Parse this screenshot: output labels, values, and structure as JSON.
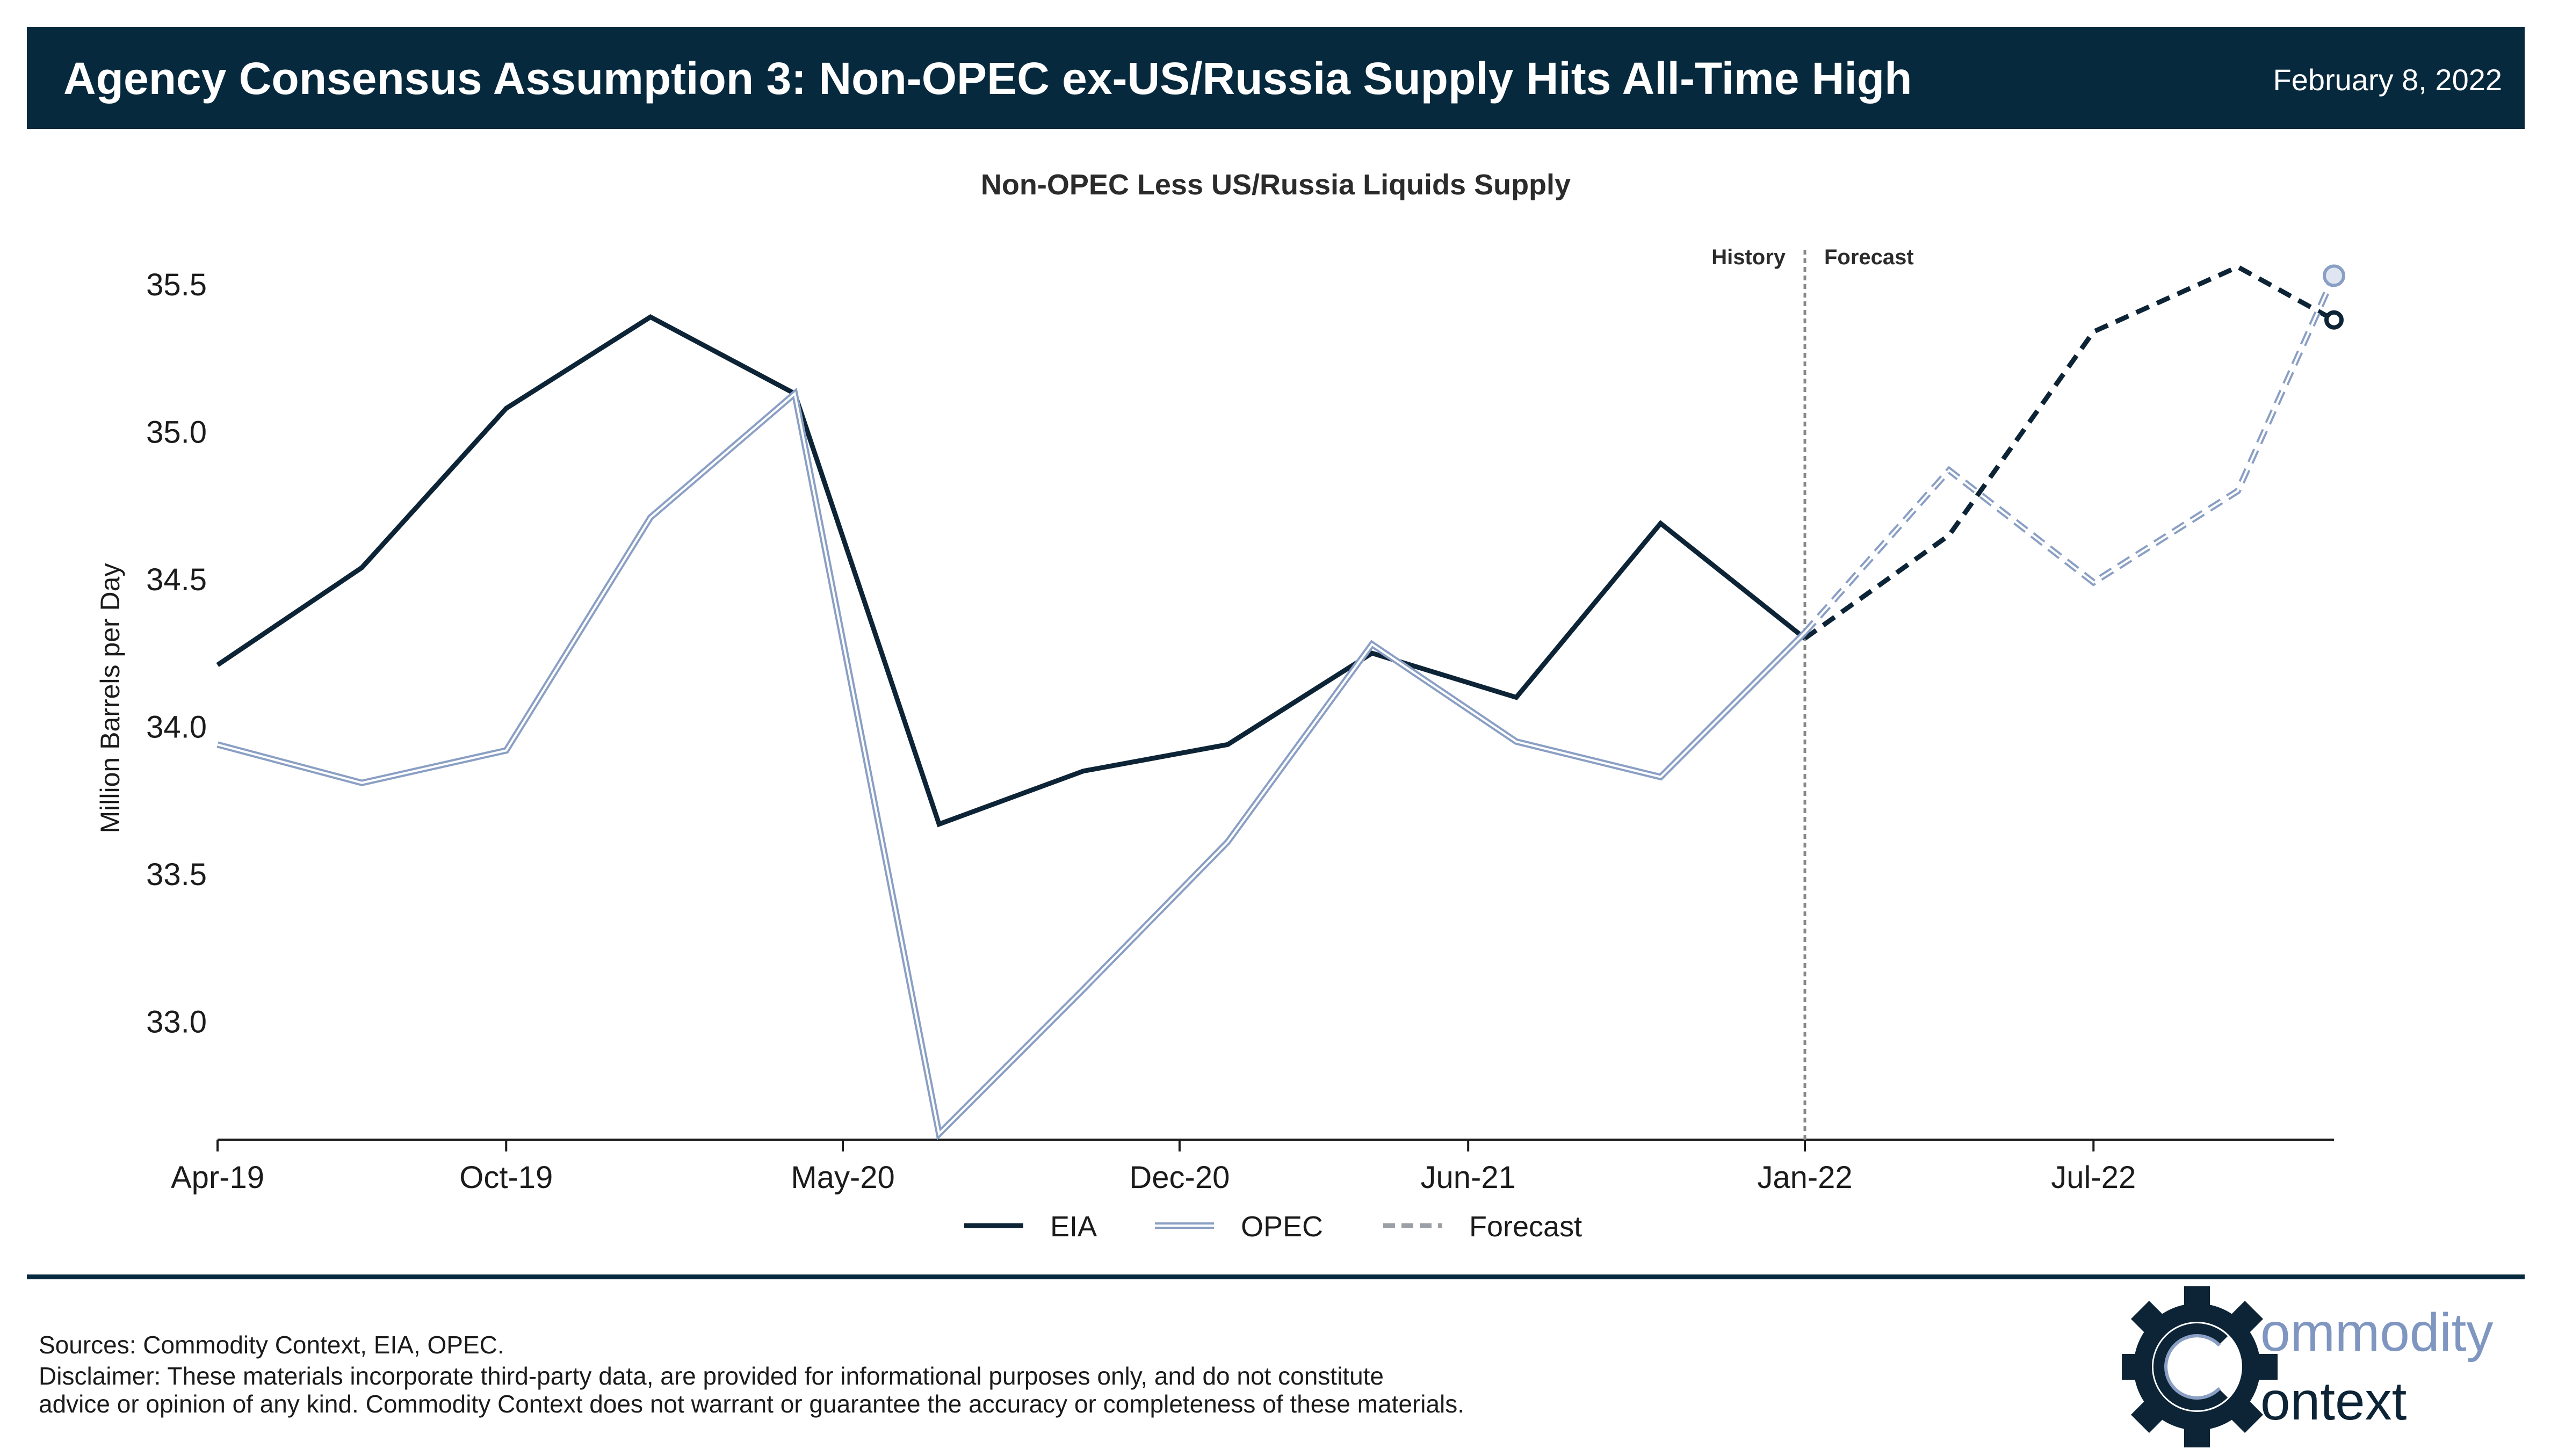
{
  "header": {
    "title": "Agency Consensus Assumption 3: Non-OPEC ex-US/Russia Supply Hits All-Time High",
    "date": "February 8, 2022"
  },
  "colors": {
    "header_bg": "#07293d",
    "eia": "#0d2436",
    "opec": "#8a9fc4",
    "forecast_line": "#9aa0a6",
    "divider": "#07293d"
  },
  "chart_data": {
    "type": "line",
    "title": "Non-OPEC Less US/Russia Liquids Supply",
    "ylabel": "Million Barrels per Day",
    "xlabel": "",
    "ylim": [
      32.6,
      35.7
    ],
    "yticks": [
      33.0,
      33.5,
      34.0,
      34.5,
      35.0,
      35.5
    ],
    "ytick_labels": [
      "33.0",
      "33.5",
      "34.0",
      "34.5",
      "35.0",
      "35.5"
    ],
    "xticks": [
      "2019-04",
      "2019-10",
      "2020-05",
      "2020-12",
      "2021-06",
      "2022-01",
      "2022-07"
    ],
    "xtick_labels": [
      "Apr-19",
      "Oct-19",
      "May-20",
      "Dec-20",
      "Jun-21",
      "Jan-22",
      "Jul-22"
    ],
    "x_range": [
      "2019-04",
      "2022-12"
    ],
    "divider_x": "2022-01",
    "divider_labels": {
      "left": "History",
      "right": "Forecast"
    },
    "grid": false,
    "legend": {
      "placement": "bottom-center",
      "entries": [
        "EIA",
        "OPEC",
        "Forecast"
      ]
    },
    "series": [
      {
        "name": "EIA",
        "history": {
          "x": [
            "2019-04",
            "2019-07",
            "2019-10",
            "2020-01",
            "2020-04",
            "2020-07",
            "2020-10",
            "2021-01",
            "2021-04",
            "2021-07",
            "2021-10",
            "2022-01"
          ],
          "y": [
            34.21,
            34.54,
            35.08,
            35.39,
            35.13,
            33.67,
            33.85,
            33.94,
            34.25,
            34.1,
            34.69,
            34.3
          ]
        },
        "forecast": {
          "x": [
            "2022-01",
            "2022-04",
            "2022-07",
            "2022-10",
            "2022-12"
          ],
          "y": [
            34.3,
            34.65,
            35.34,
            35.56,
            35.38
          ]
        }
      },
      {
        "name": "OPEC",
        "history": {
          "x": [
            "2019-04",
            "2019-07",
            "2019-10",
            "2020-01",
            "2020-04",
            "2020-07",
            "2020-10",
            "2021-01",
            "2021-04",
            "2021-07",
            "2021-10",
            "2022-01"
          ],
          "y": [
            33.94,
            33.81,
            33.92,
            34.71,
            35.13,
            32.62,
            33.11,
            33.61,
            34.28,
            33.95,
            33.83,
            34.32
          ]
        },
        "forecast": {
          "x": [
            "2022-01",
            "2022-04",
            "2022-07",
            "2022-10",
            "2022-12"
          ],
          "y": [
            34.32,
            34.87,
            34.49,
            34.8,
            35.53
          ]
        }
      }
    ]
  },
  "footer": {
    "sources": "Sources: Commodity Context, EIA, OPEC.",
    "disclaimer_line1": "Disclaimer: These materials incorporate third-party data, are provided for informational purposes only, and do not constitute",
    "disclaimer_line2": "advice or opinion of any kind. Commodity Context does not warrant or guarantee the accuracy or completeness of these materials."
  },
  "logo": {
    "line1": "ommodity",
    "line2": "ontext",
    "icon": "gear-c-icon"
  }
}
